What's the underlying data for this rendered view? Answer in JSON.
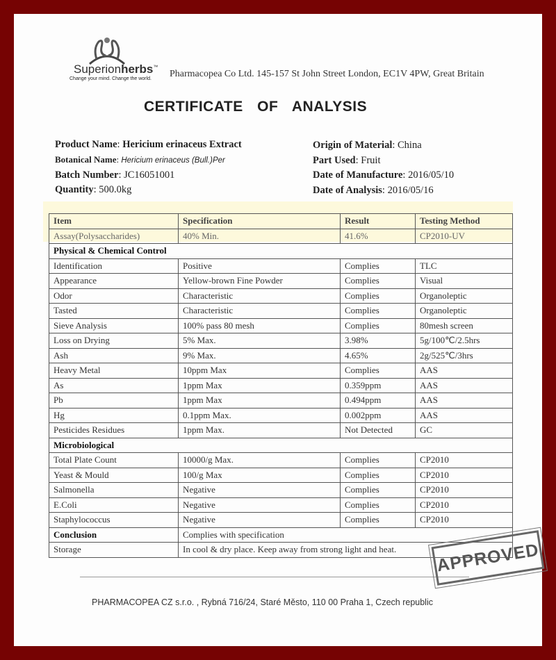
{
  "header": {
    "brand_light": "Superion",
    "brand_bold": "herbs",
    "trademark": "™",
    "tagline": "Change your mind. Change the world.",
    "address": "Pharmacopea Co Ltd. 145-157 St John Street London, EC1V 4PW, Great Britain"
  },
  "title": "CERTIFICATE OF ANALYSIS",
  "info_left": [
    {
      "label": "Product Name",
      "value": "Hericium erinaceus Extract"
    },
    {
      "label": "Botanical Name",
      "value": "Hericium erinaceus (Bull.)Per"
    },
    {
      "label": "Batch Number",
      "value": "JC16051001"
    },
    {
      "label": "Quantity",
      "value": "500.0kg"
    }
  ],
  "info_right": [
    {
      "label": "Origin of Material",
      "value": "China"
    },
    {
      "label": "Part Used",
      "value": "Fruit"
    },
    {
      "label": "Date of Manufacture",
      "value": "2016/05/10"
    },
    {
      "label": "Date of Analysis",
      "value": "2016/05/16"
    }
  ],
  "table": {
    "headers": [
      "Item",
      "Specification",
      "Result",
      "Testing Method"
    ],
    "assay": [
      "Assay(Polysaccharides)",
      "40% Min.",
      "41.6%",
      "CP2010-UV"
    ],
    "section1": "Physical & Chemical Control",
    "rows1": [
      [
        "Identification",
        "Positive",
        "Complies",
        "TLC"
      ],
      [
        "Appearance",
        "Yellow-brown Fine Powder",
        "Complies",
        "Visual"
      ],
      [
        "Odor",
        "Characteristic",
        "Complies",
        "Organoleptic"
      ],
      [
        "Tasted",
        "Characteristic",
        "Complies",
        "Organoleptic"
      ],
      [
        "Sieve Analysis",
        "100% pass 80 mesh",
        "Complies",
        "80mesh screen"
      ],
      [
        "Loss on Drying",
        "5% Max.",
        "3.98%",
        "5g/100℃/2.5hrs"
      ],
      [
        "Ash",
        "9% Max.",
        "4.65%",
        "2g/525℃/3hrs"
      ],
      [
        "Heavy Metal",
        "10ppm Max",
        "Complies",
        "AAS"
      ],
      [
        "As",
        "1ppm Max",
        "0.359ppm",
        "AAS"
      ],
      [
        "Pb",
        "1ppm Max",
        "0.494ppm",
        "AAS"
      ],
      [
        "Hg",
        "0.1ppm Max.",
        "0.002ppm",
        "AAS"
      ],
      [
        "Pesticides Residues",
        "1ppm Max.",
        "Not Detected",
        "GC"
      ]
    ],
    "section2": "Microbiological",
    "rows2": [
      [
        "Total Plate Count",
        "10000/g Max.",
        "Complies",
        "CP2010"
      ],
      [
        "Yeast & Mould",
        "100/g Max",
        "Complies",
        "CP2010"
      ],
      [
        "Salmonella",
        "Negative",
        "Complies",
        "CP2010"
      ],
      [
        "E.Coli",
        "Negative",
        "Complies",
        "CP2010"
      ],
      [
        "Staphylococcus",
        "Negative",
        "Complies",
        "CP2010"
      ]
    ],
    "conclusion_label": "Conclusion",
    "conclusion": "Complies with specification",
    "storage_label": "Storage",
    "storage": "In cool & dry place. Keep away from strong light and heat."
  },
  "footer": "PHARMACOPEA CZ s.r.o. , Rybná  716/24, Staré Město, 110 00 Praha 1, Czech republic",
  "stamp": "APPROVED",
  "colors": {
    "frame": "#760303",
    "highlight": "#fdf9dc"
  }
}
